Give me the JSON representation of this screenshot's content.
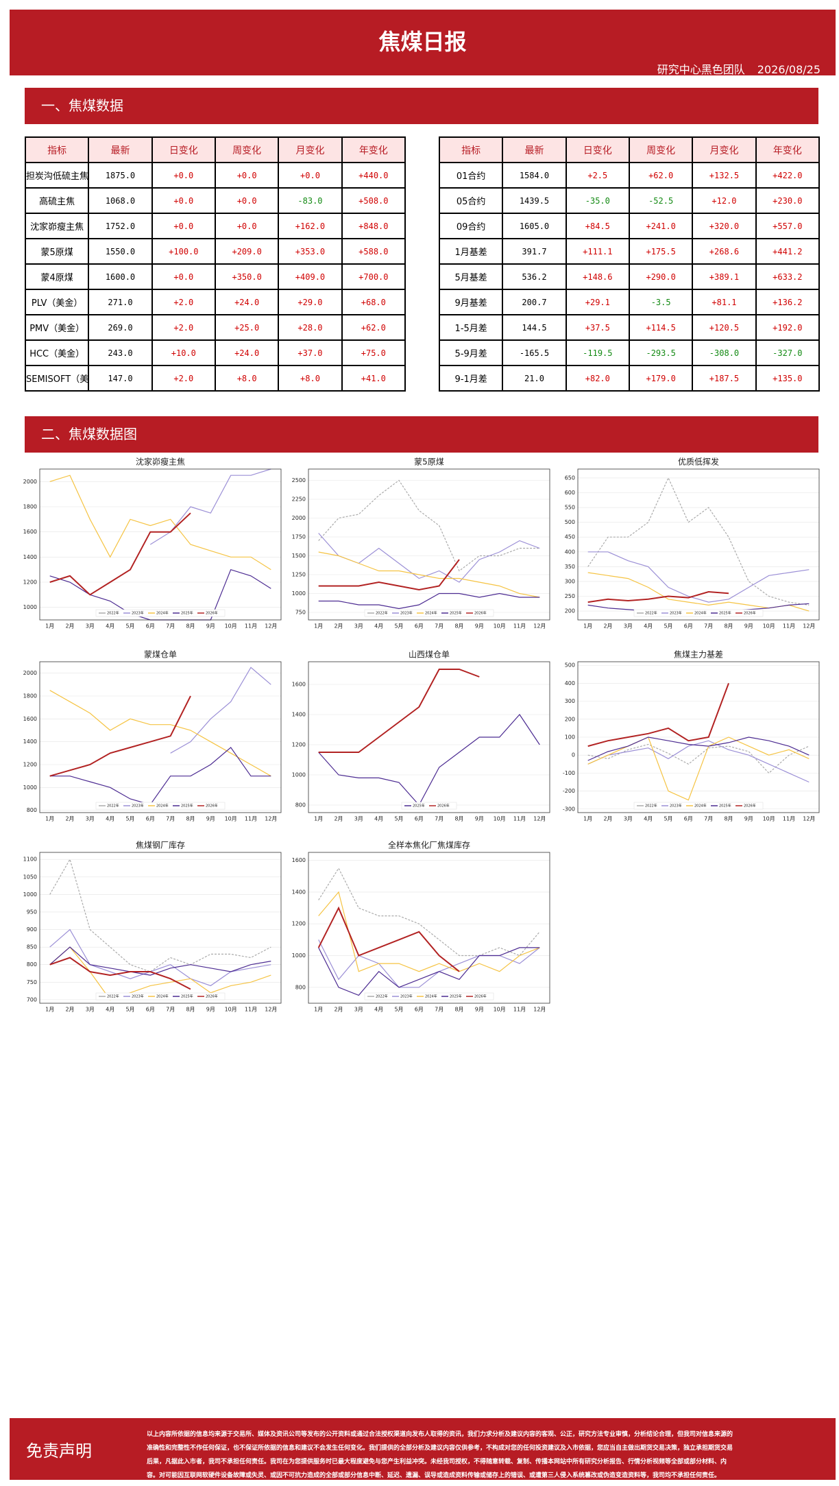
{
  "header": {
    "title": "焦煤日报",
    "subtitle": "研究中心黑色团队",
    "date": "2026/08/25"
  },
  "section1": "一、焦煤数据",
  "section2": "二、焦煤数据图",
  "tables": [
    {
      "columns": [
        "指标",
        "最新",
        "日变化",
        "周变化",
        "月变化",
        "年变化"
      ],
      "rows": [
        [
          "担炭沟低硫主焦",
          "1875.0",
          "+0.0",
          "+0.0",
          "+0.0",
          "+440.0"
        ],
        [
          "高硫主焦",
          "1068.0",
          "+0.0",
          "+0.0",
          "-83.0",
          "+508.0"
        ],
        [
          "沈家峁瘦主焦",
          "1752.0",
          "+0.0",
          "+0.0",
          "+162.0",
          "+848.0"
        ],
        [
          "蒙5原煤",
          "1550.0",
          "+100.0",
          "+209.0",
          "+353.0",
          "+588.0"
        ],
        [
          "蒙4原煤",
          "1600.0",
          "+0.0",
          "+350.0",
          "+409.0",
          "+700.0"
        ],
        [
          "PLV（美金）",
          "271.0",
          "+2.0",
          "+24.0",
          "+29.0",
          "+68.0"
        ],
        [
          "PMV（美金）",
          "269.0",
          "+2.0",
          "+25.0",
          "+28.0",
          "+62.0"
        ],
        [
          "HCC（美金）",
          "243.0",
          "+10.0",
          "+24.0",
          "+37.0",
          "+75.0"
        ],
        [
          "SEMISOFT（美金）",
          "147.0",
          "+2.0",
          "+8.0",
          "+8.0",
          "+41.0"
        ]
      ]
    },
    {
      "columns": [
        "指标",
        "最新",
        "日变化",
        "周变化",
        "月变化",
        "年变化"
      ],
      "rows": [
        [
          "01合约",
          "1584.0",
          "+2.5",
          "+62.0",
          "+132.5",
          "+422.0"
        ],
        [
          "05合约",
          "1439.5",
          "-35.0",
          "-52.5",
          "+12.0",
          "+230.0"
        ],
        [
          "09合约",
          "1605.0",
          "+84.5",
          "+241.0",
          "+320.0",
          "+557.0"
        ],
        [
          "1月基差",
          "391.7",
          "+111.1",
          "+175.5",
          "+268.6",
          "+441.2"
        ],
        [
          "5月基差",
          "536.2",
          "+148.6",
          "+290.0",
          "+389.1",
          "+633.2"
        ],
        [
          "9月基差",
          "200.7",
          "+29.1",
          "-3.5",
          "+81.1",
          "+136.2"
        ],
        [
          "1-5月差",
          "144.5",
          "+37.5",
          "+114.5",
          "+120.5",
          "+192.0"
        ],
        [
          "5-9月差",
          "-165.5",
          "-119.5",
          "-293.5",
          "-308.0",
          "-327.0"
        ],
        [
          "9-1月差",
          "21.0",
          "+82.0",
          "+179.0",
          "+187.5",
          "+135.0"
        ]
      ]
    }
  ],
  "chart_data": [
    {
      "type": "line",
      "title": "沈家峁瘦主焦",
      "categories": [
        "1月",
        "2月",
        "3月",
        "4月",
        "5月",
        "6月",
        "7月",
        "8月",
        "9月",
        "10月",
        "11月",
        "12月"
      ],
      "ylim": [
        900,
        2100
      ],
      "yticks": [
        1000,
        1200,
        1400,
        1600,
        1800,
        2000
      ],
      "series": [
        {
          "name": "2022年",
          "color": "#aaaaaa",
          "values": [
            null,
            null,
            null,
            null,
            null,
            null,
            null,
            null,
            null,
            null,
            null,
            null
          ]
        },
        {
          "name": "2023年",
          "color": "#9b8fd6",
          "values": [
            null,
            null,
            null,
            null,
            null,
            1500,
            1600,
            1800,
            1750,
            2050,
            2050,
            2100
          ]
        },
        {
          "name": "2024年",
          "color": "#f5c342",
          "values": [
            2000,
            2050,
            1700,
            1400,
            1700,
            1650,
            1700,
            1500,
            1450,
            1400,
            1400,
            1300
          ]
        },
        {
          "name": "2025年",
          "color": "#4b2a91",
          "values": [
            1250,
            1200,
            1100,
            1050,
            950,
            900,
            900,
            900,
            900,
            1300,
            1250,
            1150
          ]
        },
        {
          "name": "2026年",
          "color": "#b22222",
          "values": [
            1200,
            1250,
            1100,
            1200,
            1300,
            1600,
            1600,
            1750,
            null,
            null,
            null,
            null
          ]
        }
      ]
    },
    {
      "type": "line",
      "title": "蒙5原煤",
      "categories": [
        "1月",
        "2月",
        "3月",
        "4月",
        "5月",
        "6月",
        "7月",
        "8月",
        "9月",
        "10月",
        "11月",
        "12月"
      ],
      "ylim": [
        650,
        2650
      ],
      "yticks": [
        750,
        1000,
        1250,
        1500,
        1750,
        2000,
        2250,
        2500
      ],
      "series": [
        {
          "name": "2022年",
          "color": "#aaaaaa",
          "values": [
            1700,
            2000,
            2050,
            2300,
            2500,
            2100,
            1900,
            1300,
            1500,
            1500,
            1600,
            1600
          ]
        },
        {
          "name": "2023年",
          "color": "#9b8fd6",
          "values": [
            1800,
            1500,
            1400,
            1600,
            1400,
            1200,
            1300,
            1150,
            1450,
            1550,
            1700,
            1600
          ]
        },
        {
          "name": "2024年",
          "color": "#f5c342",
          "values": [
            1550,
            1500,
            1400,
            1300,
            1300,
            1250,
            1200,
            1200,
            1150,
            1100,
            1000,
            950
          ]
        },
        {
          "name": "2025年",
          "color": "#4b2a91",
          "values": [
            900,
            900,
            850,
            850,
            800,
            850,
            1000,
            1000,
            950,
            1000,
            950,
            950
          ]
        },
        {
          "name": "2026年",
          "color": "#b22222",
          "values": [
            1100,
            1100,
            1100,
            1150,
            1100,
            1050,
            1100,
            1450,
            null,
            null,
            null,
            null
          ]
        }
      ]
    },
    {
      "type": "line",
      "title": "优质低挥发",
      "categories": [
        "1月",
        "2月",
        "3月",
        "4月",
        "5月",
        "6月",
        "7月",
        "8月",
        "9月",
        "10月",
        "11月",
        "12月"
      ],
      "ylim": [
        170,
        680
      ],
      "yticks": [
        200,
        250,
        300,
        350,
        400,
        450,
        500,
        550,
        600,
        650
      ],
      "series": [
        {
          "name": "2022年",
          "color": "#aaaaaa",
          "values": [
            350,
            450,
            450,
            500,
            650,
            500,
            550,
            450,
            300,
            250,
            230,
            220
          ]
        },
        {
          "name": "2023年",
          "color": "#9b8fd6",
          "values": [
            400,
            400,
            370,
            350,
            280,
            250,
            230,
            240,
            280,
            320,
            330,
            340
          ]
        },
        {
          "name": "2024年",
          "color": "#f5c342",
          "values": [
            330,
            320,
            310,
            280,
            240,
            230,
            220,
            230,
            220,
            210,
            220,
            200
          ]
        },
        {
          "name": "2025年",
          "color": "#4b2a91",
          "values": [
            220,
            210,
            205,
            200,
            190,
            190,
            195,
            200,
            205,
            210,
            220,
            225
          ]
        },
        {
          "name": "2026年",
          "color": "#b22222",
          "values": [
            230,
            240,
            235,
            240,
            250,
            245,
            265,
            260,
            null,
            null,
            null,
            null
          ]
        }
      ]
    },
    {
      "type": "line",
      "title": "蒙煤仓单",
      "categories": [
        "1月",
        "2月",
        "3月",
        "4月",
        "5月",
        "6月",
        "7月",
        "8月",
        "9月",
        "10月",
        "11月",
        "12月"
      ],
      "ylim": [
        780,
        2100
      ],
      "yticks": [
        800,
        1000,
        1200,
        1400,
        1600,
        1800,
        2000
      ],
      "series": [
        {
          "name": "2022年",
          "color": "#aaaaaa",
          "values": [
            null,
            null,
            null,
            null,
            null,
            null,
            null,
            null,
            null,
            null,
            null,
            null
          ]
        },
        {
          "name": "2023年",
          "color": "#9b8fd6",
          "values": [
            null,
            null,
            null,
            null,
            null,
            null,
            1300,
            1400,
            1600,
            1750,
            2050,
            1900
          ]
        },
        {
          "name": "2024年",
          "color": "#f5c342",
          "values": [
            1850,
            1750,
            1650,
            1500,
            1600,
            1550,
            1550,
            1500,
            1400,
            1300,
            1200,
            1100
          ]
        },
        {
          "name": "2025年",
          "color": "#4b2a91",
          "values": [
            1100,
            1100,
            1050,
            1000,
            900,
            850,
            1100,
            1100,
            1200,
            1350,
            1100,
            1100
          ]
        },
        {
          "name": "2026年",
          "color": "#b22222",
          "values": [
            1100,
            1150,
            1200,
            1300,
            1350,
            1400,
            1450,
            1800,
            null,
            null,
            null,
            null
          ]
        }
      ]
    },
    {
      "type": "line",
      "title": "山西煤仓单",
      "categories": [
        "1月",
        "2月",
        "3月",
        "4月",
        "5月",
        "6月",
        "7月",
        "8月",
        "9月",
        "10月",
        "11月",
        "12月"
      ],
      "ylim": [
        750,
        1750
      ],
      "yticks": [
        800,
        1000,
        1200,
        1400,
        1600
      ],
      "series": [
        {
          "name": "2025年",
          "color": "#4b2a91",
          "values": [
            1150,
            1000,
            980,
            980,
            950,
            800,
            1050,
            1150,
            1250,
            1250,
            1400,
            1200
          ]
        },
        {
          "name": "2026年",
          "color": "#b22222",
          "values": [
            1150,
            1150,
            1150,
            1250,
            1350,
            1450,
            1700,
            1700,
            1650,
            null,
            null,
            null
          ]
        }
      ]
    },
    {
      "type": "line",
      "title": "焦煤主力基差",
      "categories": [
        "1月",
        "2月",
        "3月",
        "4月",
        "5月",
        "6月",
        "7月",
        "8月",
        "9月",
        "10月",
        "11月",
        "12月"
      ],
      "ylim": [
        -320,
        520
      ],
      "yticks": [
        -300,
        -200,
        -100,
        0,
        100,
        200,
        300,
        400,
        500
      ],
      "series": [
        {
          "name": "2022年",
          "color": "#aaaaaa",
          "values": [
            0,
            -20,
            30,
            60,
            10,
            -50,
            40,
            50,
            20,
            -100,
            0,
            50
          ]
        },
        {
          "name": "2023年",
          "color": "#9b8fd6",
          "values": [
            -50,
            0,
            20,
            40,
            -20,
            50,
            80,
            30,
            0,
            -50,
            -100,
            -150
          ]
        },
        {
          "name": "2024年",
          "color": "#f5c342",
          "values": [
            -50,
            0,
            50,
            100,
            -200,
            -250,
            50,
            100,
            50,
            0,
            30,
            -20
          ]
        },
        {
          "name": "2025年",
          "color": "#4b2a91",
          "values": [
            -30,
            20,
            50,
            100,
            80,
            60,
            50,
            70,
            100,
            80,
            50,
            0
          ]
        },
        {
          "name": "2026年",
          "color": "#b22222",
          "values": [
            50,
            80,
            100,
            120,
            150,
            80,
            100,
            400,
            null,
            null,
            null,
            null
          ]
        }
      ]
    },
    {
      "type": "line",
      "title": "焦煤钢厂库存",
      "categories": [
        "1月",
        "2月",
        "3月",
        "4月",
        "5月",
        "6月",
        "7月",
        "8月",
        "9月",
        "10月",
        "11月",
        "12月"
      ],
      "ylim": [
        690,
        1120
      ],
      "yticks": [
        700,
        750,
        800,
        850,
        900,
        950,
        1000,
        1050,
        1100
      ],
      "series": [
        {
          "name": "2022年",
          "color": "#aaaaaa",
          "values": [
            1000,
            1100,
            900,
            850,
            800,
            780,
            820,
            800,
            830,
            830,
            820,
            850
          ]
        },
        {
          "name": "2023年",
          "color": "#9b8fd6",
          "values": [
            850,
            900,
            800,
            780,
            760,
            780,
            800,
            760,
            740,
            780,
            790,
            800
          ]
        },
        {
          "name": "2024年",
          "color": "#f5c342",
          "values": [
            800,
            850,
            780,
            700,
            720,
            740,
            750,
            760,
            720,
            740,
            750,
            770
          ]
        },
        {
          "name": "2025年",
          "color": "#4b2a91",
          "values": [
            800,
            850,
            800,
            790,
            780,
            770,
            790,
            800,
            790,
            780,
            800,
            810
          ]
        },
        {
          "name": "2026年",
          "color": "#b22222",
          "values": [
            800,
            820,
            780,
            770,
            780,
            780,
            760,
            730,
            null,
            null,
            null,
            null
          ]
        }
      ]
    },
    {
      "type": "line",
      "title": "全样本焦化厂焦煤库存",
      "categories": [
        "1月",
        "2月",
        "3月",
        "4月",
        "5月",
        "6月",
        "7月",
        "8月",
        "9月",
        "10月",
        "11月",
        "12月"
      ],
      "ylim": [
        700,
        1650
      ],
      "yticks": [
        800,
        1000,
        1200,
        1400,
        1600
      ],
      "series": [
        {
          "name": "2022年",
          "color": "#aaaaaa",
          "values": [
            1350,
            1550,
            1300,
            1250,
            1250,
            1200,
            1100,
            1000,
            1000,
            1050,
            1000,
            1150
          ]
        },
        {
          "name": "2023年",
          "color": "#9b8fd6",
          "values": [
            1100,
            850,
            1000,
            950,
            800,
            800,
            900,
            950,
            1000,
            1000,
            950,
            1050
          ]
        },
        {
          "name": "2024年",
          "color": "#f5c342",
          "values": [
            1250,
            1400,
            900,
            950,
            950,
            900,
            950,
            900,
            950,
            900,
            1000,
            1050
          ]
        },
        {
          "name": "2025年",
          "color": "#4b2a91",
          "values": [
            1050,
            800,
            750,
            900,
            800,
            850,
            900,
            850,
            1000,
            1000,
            1050,
            1050
          ]
        },
        {
          "name": "2026年",
          "color": "#b22222",
          "values": [
            1050,
            1300,
            1000,
            1050,
            1100,
            1150,
            1000,
            900,
            null,
            null,
            null,
            null
          ]
        }
      ]
    }
  ],
  "disclaimer": {
    "title": "免责声明",
    "text": "以上内容所依据的信息均来源于交易所、媒体及资讯公司等发布的公开资料或通过合法授权渠道向发布人取得的资讯，我们力求分析及建议内容的客观、公正，研究方法专业审慎，分析结论合理，但我司对信息来源的准确性和完整性不作任何保证，也不保证所依据的信息和建议不会发生任何变化。我们提供的全部分析及建议内容仅供参考，不构成对您的任何投资建议及入市依据，您应当自主做出期货交易决策，独立承担期货交易后果，凡据此入市者，我司不承担任何责任。我司在为您提供服务时已最大程度避免与您产生利益冲突。未经我司授权，不得随意转载、复制、传播本网站中所有研究分析报告、行情分析视频等全部或部分材料、内容。对可能因互联网软硬件设备故障或失灵、或因不可抗力造成的全部或部分信息中断、延迟、遗漏、误导或造成资料传输或储存上的错误、或遭第三人侵入系统篡改或伪造变造资料等，我司均不承担任何责任。"
  }
}
